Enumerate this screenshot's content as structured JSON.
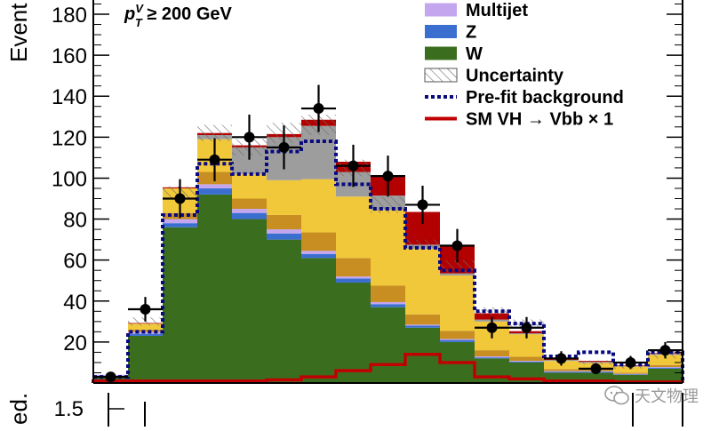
{
  "chart_data": {
    "type": "bar",
    "stacked": true,
    "annotation": {
      "prefix": "p",
      "sup": "V",
      "sub": "T",
      "suffix": " ≥ 200 GeV"
    },
    "ylabel": "Event",
    "lower_panel_ylabel": "ed.",
    "lower_panel_tick": "1.5",
    "ylim": [
      0,
      190
    ],
    "yticks": [
      20,
      40,
      60,
      80,
      100,
      120,
      140,
      160,
      180
    ],
    "bin_edges": [
      0,
      1,
      2,
      3,
      4,
      5,
      6,
      7,
      8,
      9,
      10,
      11,
      12,
      13,
      14,
      15,
      16,
      17
    ],
    "colors": {
      "w_dark": "#3a6e1e",
      "z_blue": "#3a6fd0",
      "multijet": "#c4a6ef",
      "top_dark": "#c88e22",
      "top_light": "#f2c83b",
      "grey": "#9d9d9d",
      "signal_red": "#b30000",
      "prefit": "#0a0a80",
      "sm_line": "#c00000"
    },
    "series": [
      {
        "key": "w_dark",
        "values": [
          3,
          23,
          76,
          92,
          80,
          70,
          61,
          49,
          37,
          27,
          20,
          12,
          10,
          5,
          5,
          4,
          7
        ]
      },
      {
        "key": "z_blue",
        "values": [
          0.5,
          1,
          2,
          3,
          3,
          3,
          2,
          2,
          1.5,
          1,
          1,
          0.5,
          0.5,
          0.5,
          0.5,
          0.3,
          0.5
        ]
      },
      {
        "key": "multijet",
        "values": [
          0.5,
          1,
          2,
          2,
          2,
          2,
          1.5,
          1,
          1,
          0.5,
          0.5,
          0.5,
          0.3,
          0.3,
          0.3,
          0.2,
          0.3
        ]
      },
      {
        "key": "top_dark",
        "values": [
          0,
          1,
          3,
          6,
          5,
          7,
          9,
          9,
          8,
          5,
          4,
          3,
          2,
          1,
          1,
          0.5,
          1
        ]
      },
      {
        "key": "top_light",
        "values": [
          0,
          3,
          12,
          16,
          12,
          17,
          26,
          30,
          37,
          32,
          27,
          14,
          11,
          4,
          3,
          3,
          5
        ]
      },
      {
        "key": "grey",
        "values": [
          0,
          0,
          0,
          2,
          13,
          21,
          26,
          12,
          7,
          2,
          1,
          1,
          0.5,
          0.5,
          0.5,
          0.3,
          0.5
        ]
      },
      {
        "key": "signal_red",
        "values": [
          0,
          0.3,
          0.5,
          1,
          1,
          1.5,
          3,
          5,
          10,
          16,
          14,
          3,
          1,
          0.5,
          0.5,
          0.3,
          0.3
        ]
      }
    ],
    "uncertainty_band": [
      [
        0,
        4
      ],
      [
        28,
        32
      ],
      [
        90,
        96
      ],
      [
        118,
        126
      ],
      [
        111,
        119
      ],
      [
        117,
        127
      ],
      [
        121,
        131
      ],
      [
        101,
        109
      ],
      [
        83,
        91
      ],
      [
        66,
        70
      ],
      [
        54,
        60
      ],
      [
        33,
        37
      ],
      [
        27,
        31
      ],
      [
        11,
        13
      ],
      [
        9,
        11
      ],
      [
        7,
        9
      ],
      [
        12,
        16
      ]
    ],
    "prefit_background": [
      3,
      25,
      82,
      107,
      102,
      113,
      118,
      97,
      85,
      66,
      55,
      35,
      29,
      13,
      15,
      9,
      15
    ],
    "sm_vh_signal": [
      1,
      1,
      1,
      1,
      1,
      1.5,
      3,
      6,
      9,
      14,
      10,
      3,
      2,
      1,
      1,
      0.5,
      0.5
    ],
    "data_points": [
      {
        "x": 0.5,
        "y": 3,
        "err": 2
      },
      {
        "x": 1.5,
        "y": 36,
        "err": 6
      },
      {
        "x": 2.5,
        "y": 90,
        "err": 9.5
      },
      {
        "x": 3.5,
        "y": 109,
        "err": 10.5
      },
      {
        "x": 4.5,
        "y": 120,
        "err": 11
      },
      {
        "x": 5.5,
        "y": 115,
        "err": 10.7
      },
      {
        "x": 6.5,
        "y": 134,
        "err": 11.5
      },
      {
        "x": 7.5,
        "y": 106,
        "err": 10.3
      },
      {
        "x": 8.5,
        "y": 101,
        "err": 10
      },
      {
        "x": 9.5,
        "y": 87,
        "err": 9.3
      },
      {
        "x": 10.5,
        "y": 67,
        "err": 8.2
      },
      {
        "x": 11.5,
        "y": 27,
        "err": 5.2
      },
      {
        "x": 12.5,
        "y": 27,
        "err": 5.2
      },
      {
        "x": 13.5,
        "y": 12,
        "err": 3.5
      },
      {
        "x": 14.5,
        "y": 7,
        "err": 2.7
      },
      {
        "x": 15.5,
        "y": 10,
        "err": 3.2
      },
      {
        "x": 16.5,
        "y": 16,
        "err": 4
      }
    ],
    "legend": {
      "placement": "top-right",
      "entries": [
        {
          "label": "Multijet",
          "kind": "fill",
          "color_key": "multijet"
        },
        {
          "label": "Z",
          "kind": "fill",
          "color_key": "z_blue"
        },
        {
          "label": "W",
          "kind": "fill",
          "color_key": "w_dark"
        },
        {
          "label": "Uncertainty",
          "kind": "hatch"
        },
        {
          "label": "Pre-fit background",
          "kind": "dotted"
        },
        {
          "label": "SM VH → Vbb  × 1",
          "kind": "line"
        }
      ]
    }
  },
  "watermark": {
    "text": "天文物理",
    "icon": "wechat-icon"
  }
}
